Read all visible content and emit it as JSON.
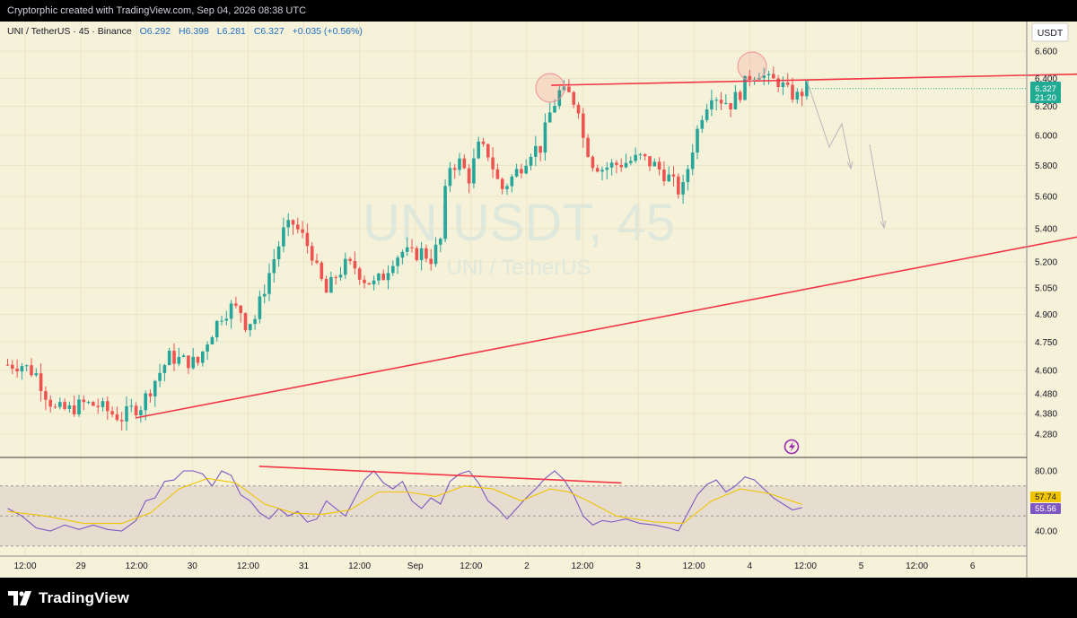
{
  "header": {
    "credit": "Cryptorphic created with TradingView.com, Sep 04, 2026 08:38 UTC"
  },
  "legend": {
    "symbol": "UNI / TetherUS · 45 · Binance",
    "open": "O6.292",
    "high": "H6.398",
    "low": "L6.281",
    "close": "C6.327",
    "change": "+0.035 (+0.56%)"
  },
  "currency": "USDT",
  "watermark": {
    "ticker": "UNIUSDT, 45",
    "name": "UNI / TetherUS"
  },
  "price_label": {
    "value": "6.327",
    "countdown": "21:20"
  },
  "rsi_labels": {
    "ma": "57.74",
    "rsi": "55.56"
  },
  "footer": {
    "brand": "TradingView"
  },
  "colors": {
    "background": "#f6f1d9",
    "up": "#26a69a",
    "down": "#ef5350",
    "trendline": "#f23645",
    "rsi_line": "#7e57c2",
    "rsi_ma": "#f0c400",
    "price_tag": "#22ab94",
    "icon_purple": "#9c27b0"
  },
  "chart_data": [
    {
      "type": "candlestick",
      "title": "UNIUSDT, 45",
      "y_scale": "log",
      "yticks": [
        6.6,
        6.4,
        6.2,
        6.0,
        5.8,
        5.6,
        5.4,
        5.2,
        5.05,
        4.9,
        4.75,
        4.6,
        4.48,
        4.38,
        4.28
      ],
      "ytick_labels": [
        "6.600",
        "6.400",
        "6.200",
        "6.000",
        "5.800",
        "5.600",
        "5.400",
        "5.200",
        "5.050",
        "4.900",
        "4.750",
        "4.600",
        "4.480",
        "4.380",
        "4.280"
      ],
      "xticks": [
        "12:00",
        "29",
        "12:00",
        "30",
        "12:00",
        "31",
        "12:00",
        "Sep",
        "12:00",
        "2",
        "12:00",
        "3",
        "12:00",
        "4",
        "12:00",
        "5",
        "12:00",
        "6"
      ],
      "price_path": [
        [
          0,
          4.63
        ],
        [
          3,
          4.63
        ],
        [
          6,
          4.58
        ],
        [
          8,
          4.48
        ],
        [
          10,
          4.4
        ],
        [
          13,
          4.4
        ],
        [
          16,
          4.43
        ],
        [
          19,
          4.42
        ],
        [
          22,
          4.38
        ],
        [
          24,
          4.36
        ],
        [
          26,
          4.4
        ],
        [
          28,
          4.42
        ],
        [
          31,
          4.55
        ],
        [
          34,
          4.67
        ],
        [
          37,
          4.65
        ],
        [
          40,
          4.64
        ],
        [
          42,
          4.76
        ],
        [
          45,
          4.9
        ],
        [
          47,
          4.94
        ],
        [
          49,
          4.92
        ],
        [
          50,
          4.85
        ],
        [
          52,
          4.88
        ],
        [
          54,
          5.05
        ],
        [
          56,
          5.22
        ],
        [
          58,
          5.38
        ],
        [
          60,
          5.43
        ],
        [
          62,
          5.35
        ],
        [
          64,
          5.25
        ],
        [
          65,
          5.15
        ],
        [
          67,
          5.02
        ],
        [
          69,
          5.12
        ],
        [
          71,
          5.18
        ],
        [
          73,
          5.17
        ],
        [
          75,
          5.1
        ],
        [
          77,
          5.07
        ],
        [
          79,
          5.12
        ],
        [
          81,
          5.22
        ],
        [
          83,
          5.26
        ],
        [
          85,
          5.24
        ],
        [
          87,
          5.26
        ],
        [
          89,
          5.22
        ],
        [
          91,
          5.33
        ],
        [
          92,
          5.62
        ],
        [
          93,
          5.8
        ],
        [
          95,
          5.82
        ],
        [
          97,
          5.72
        ],
        [
          99,
          5.92
        ],
        [
          101,
          5.88
        ],
        [
          103,
          5.7
        ],
        [
          104,
          5.65
        ],
        [
          106,
          5.72
        ],
        [
          108,
          5.8
        ],
        [
          110,
          5.9
        ],
        [
          112,
          5.92
        ],
        [
          114,
          6.15
        ],
        [
          116,
          6.3
        ],
        [
          118,
          6.28
        ],
        [
          120,
          6.2
        ],
        [
          121,
          5.98
        ],
        [
          123,
          5.82
        ],
        [
          125,
          5.78
        ],
        [
          127,
          5.8
        ],
        [
          130,
          5.82
        ],
        [
          133,
          5.85
        ],
        [
          136,
          5.8
        ],
        [
          139,
          5.72
        ],
        [
          141,
          5.64
        ],
        [
          142,
          5.65
        ],
        [
          144,
          5.92
        ],
        [
          146,
          6.15
        ],
        [
          148,
          6.3
        ],
        [
          150,
          6.25
        ],
        [
          152,
          6.22
        ],
        [
          154,
          6.3
        ],
        [
          156,
          6.42
        ],
        [
          158,
          6.45
        ],
        [
          160,
          6.38
        ],
        [
          162,
          6.38
        ],
        [
          164,
          6.3
        ],
        [
          166,
          6.27
        ],
        [
          168,
          6.33
        ]
      ],
      "trendlines": [
        {
          "name": "resistance",
          "points": [
            [
              4.72,
              6.35
            ],
            [
              15.8,
              6.54
            ]
          ]
        },
        {
          "name": "support",
          "points": [
            [
              1.0,
              4.36
            ],
            [
              16.0,
              6.27
            ]
          ]
        }
      ]
    },
    {
      "type": "line",
      "title": "RSI",
      "yticks": [
        80.0,
        40.0
      ],
      "ytick_labels": [
        "80.00",
        "40.00"
      ],
      "band": [
        70,
        30
      ],
      "series": [
        {
          "name": "RSI",
          "last_value": 55.56
        },
        {
          "name": "RSI-based MA",
          "last_value": 57.74
        }
      ],
      "rsi_path": [
        [
          0,
          55
        ],
        [
          3,
          50
        ],
        [
          6,
          42
        ],
        [
          9,
          40
        ],
        [
          12,
          44
        ],
        [
          15,
          41
        ],
        [
          18,
          44
        ],
        [
          21,
          41
        ],
        [
          24,
          40
        ],
        [
          27,
          47
        ],
        [
          29,
          60
        ],
        [
          31,
          62
        ],
        [
          33,
          73
        ],
        [
          35,
          74
        ],
        [
          37,
          80
        ],
        [
          39,
          80
        ],
        [
          41,
          78
        ],
        [
          43,
          70
        ],
        [
          45,
          80
        ],
        [
          47,
          77
        ],
        [
          49,
          64
        ],
        [
          51,
          60
        ],
        [
          53,
          52
        ],
        [
          55,
          48
        ],
        [
          57,
          55
        ],
        [
          59,
          50
        ],
        [
          61,
          53
        ],
        [
          63,
          46
        ],
        [
          65,
          48
        ],
        [
          67,
          60
        ],
        [
          69,
          55
        ],
        [
          71,
          50
        ],
        [
          73,
          62
        ],
        [
          75,
          74
        ],
        [
          77,
          80
        ],
        [
          79,
          72
        ],
        [
          81,
          68
        ],
        [
          83,
          73
        ],
        [
          85,
          60
        ],
        [
          87,
          55
        ],
        [
          89,
          62
        ],
        [
          91,
          58
        ],
        [
          93,
          73
        ],
        [
          95,
          78
        ],
        [
          97,
          80
        ],
        [
          99,
          72
        ],
        [
          101,
          60
        ],
        [
          103,
          55
        ],
        [
          105,
          48
        ],
        [
          107,
          55
        ],
        [
          109,
          62
        ],
        [
          111,
          68
        ],
        [
          113,
          75
        ],
        [
          115,
          80
        ],
        [
          117,
          74
        ],
        [
          119,
          64
        ],
        [
          121,
          50
        ],
        [
          123,
          44
        ],
        [
          125,
          47
        ],
        [
          127,
          46
        ],
        [
          130,
          48
        ],
        [
          133,
          45
        ],
        [
          136,
          44
        ],
        [
          139,
          42
        ],
        [
          141,
          40
        ],
        [
          143,
          52
        ],
        [
          145,
          64
        ],
        [
          147,
          71
        ],
        [
          149,
          74
        ],
        [
          151,
          66
        ],
        [
          153,
          70
        ],
        [
          155,
          76
        ],
        [
          157,
          74
        ],
        [
          159,
          68
        ],
        [
          161,
          62
        ],
        [
          163,
          58
        ],
        [
          165,
          54
        ],
        [
          167,
          55.56
        ]
      ],
      "ma_path": [
        [
          0,
          53
        ],
        [
          8,
          50
        ],
        [
          16,
          45
        ],
        [
          24,
          45
        ],
        [
          30,
          52
        ],
        [
          36,
          68
        ],
        [
          42,
          75
        ],
        [
          48,
          72
        ],
        [
          54,
          58
        ],
        [
          60,
          52
        ],
        [
          66,
          51
        ],
        [
          72,
          54
        ],
        [
          78,
          66
        ],
        [
          84,
          66
        ],
        [
          90,
          63
        ],
        [
          96,
          70
        ],
        [
          102,
          68
        ],
        [
          108,
          60
        ],
        [
          114,
          68
        ],
        [
          118,
          66
        ],
        [
          122,
          60
        ],
        [
          128,
          50
        ],
        [
          136,
          46
        ],
        [
          142,
          45
        ],
        [
          148,
          60
        ],
        [
          154,
          68
        ],
        [
          160,
          65
        ],
        [
          167,
          57.74
        ]
      ],
      "trendlines": [
        {
          "name": "rsi-divergence",
          "points": [
            [
              2.1,
              83.0
            ],
            [
              5.35,
              72.0
            ]
          ]
        }
      ]
    }
  ]
}
